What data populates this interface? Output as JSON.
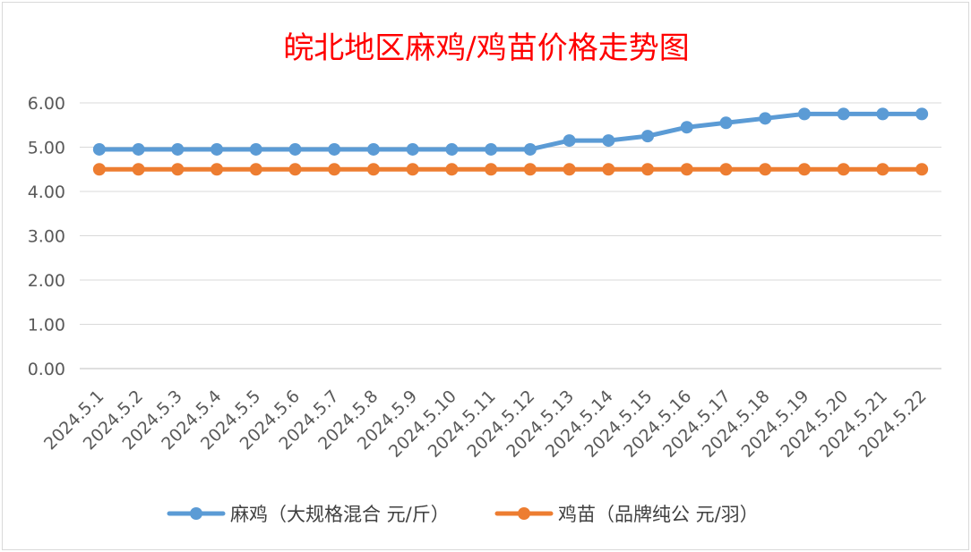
{
  "chart_data": {
    "type": "line",
    "title": "皖北地区麻鸡/鸡苗价格走势图",
    "categories": [
      "2024.5.1",
      "2024.5.2",
      "2024.5.3",
      "2024.5.4",
      "2024.5.5",
      "2024.5.6",
      "2024.5.7",
      "2024.5.8",
      "2024.5.9",
      "2024.5.10",
      "2024.5.11",
      "2024.5.12",
      "2024.5.13",
      "2024.5.14",
      "2024.5.15",
      "2024.5.16",
      "2024.5.17",
      "2024.5.18",
      "2024.5.19",
      "2024.5.20",
      "2024.5.21",
      "2024.5.22"
    ],
    "y_ticks": [
      "0.00",
      "1.00",
      "2.00",
      "3.00",
      "4.00",
      "5.00",
      "6.00"
    ],
    "ylim": [
      0,
      6
    ],
    "grid": true,
    "legend_position": "bottom",
    "series": [
      {
        "name": "麻鸡（大规格混合 元/斤）",
        "color": "#5b9bd5",
        "values": [
          4.95,
          4.95,
          4.95,
          4.95,
          4.95,
          4.95,
          4.95,
          4.95,
          4.95,
          4.95,
          4.95,
          4.95,
          5.15,
          5.15,
          5.25,
          5.45,
          5.55,
          5.65,
          5.75,
          5.75,
          5.75,
          5.75
        ]
      },
      {
        "name": "鸡苗（品牌纯公 元/羽）",
        "color": "#ed7d31",
        "values": [
          4.5,
          4.5,
          4.5,
          4.5,
          4.5,
          4.5,
          4.5,
          4.5,
          4.5,
          4.5,
          4.5,
          4.5,
          4.5,
          4.5,
          4.5,
          4.5,
          4.5,
          4.5,
          4.5,
          4.5,
          4.5,
          4.5
        ]
      }
    ]
  }
}
